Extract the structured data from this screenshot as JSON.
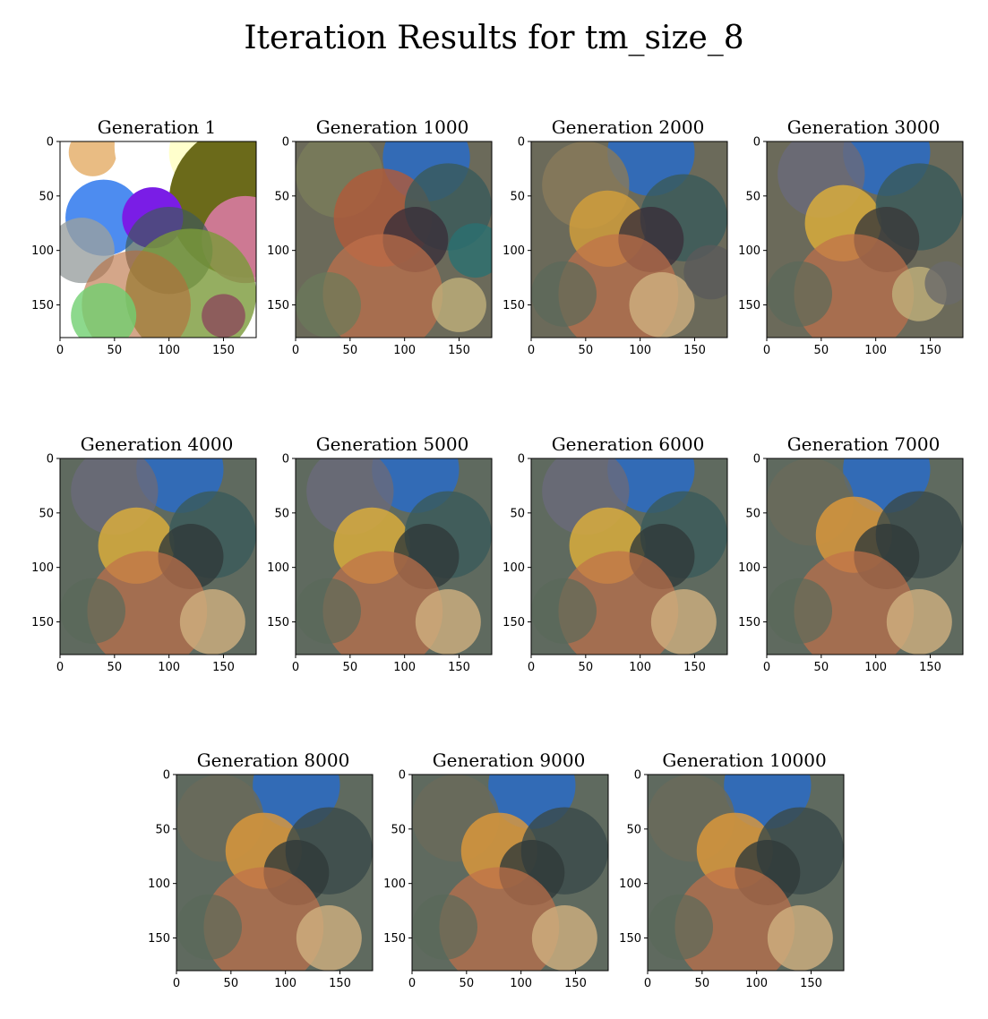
{
  "title": "Iteration Results for tm_size_8",
  "chart_data": [
    {
      "type": "image",
      "title": "Generation 1",
      "xticks": [
        "0",
        "50",
        "100",
        "150"
      ],
      "yticks": [
        "0",
        "50",
        "100",
        "150"
      ],
      "xlim": [
        0,
        180
      ],
      "ylim": [
        180,
        0
      ],
      "palette": "early",
      "circles": [
        [
          30,
          10,
          22,
          "#e8b87c",
          0.95
        ],
        [
          95,
          5,
          45,
          "#ffffff",
          1
        ],
        [
          140,
          10,
          40,
          "#ffffcc",
          1
        ],
        [
          170,
          55,
          70,
          "#6b6a1a",
          1
        ],
        [
          40,
          70,
          35,
          "#4d8cf0",
          1
        ],
        [
          85,
          70,
          28,
          "#7a1de6",
          1
        ],
        [
          170,
          90,
          40,
          "#d87ba1",
          0.9
        ],
        [
          100,
          100,
          40,
          "#3f5a5a",
          0.7
        ],
        [
          20,
          100,
          30,
          "#9aa0a0",
          0.8
        ],
        [
          120,
          140,
          60,
          "#7a9a3a",
          0.8
        ],
        [
          70,
          150,
          50,
          "#b86a3a",
          0.6
        ],
        [
          40,
          160,
          30,
          "#70d070",
          0.8
        ],
        [
          150,
          160,
          20,
          "#8a3a5a",
          0.7
        ]
      ]
    },
    {
      "type": "image",
      "title": "Generation 1000",
      "xticks": [
        "0",
        "50",
        "100",
        "150"
      ],
      "yticks": [
        "0",
        "50",
        "100",
        "150"
      ],
      "xlim": [
        0,
        180
      ],
      "ylim": [
        180,
        0
      ],
      "palette": "mid",
      "circles": [
        [
          120,
          15,
          40,
          "#2d6cc0",
          0.9
        ],
        [
          40,
          30,
          40,
          "#7a7d5a",
          0.8
        ],
        [
          80,
          70,
          45,
          "#b05a3a",
          0.8
        ],
        [
          140,
          60,
          40,
          "#3a5a5a",
          0.8
        ],
        [
          110,
          90,
          30,
          "#3a2f3a",
          0.8
        ],
        [
          80,
          140,
          55,
          "#c0704a",
          0.7
        ],
        [
          30,
          150,
          30,
          "#6a7a5a",
          0.7
        ],
        [
          150,
          150,
          25,
          "#c0b07a",
          0.8
        ],
        [
          165,
          100,
          25,
          "#2a7070",
          0.8
        ]
      ]
    },
    {
      "type": "image",
      "title": "Generation 2000",
      "xticks": [
        "0",
        "50",
        "100",
        "150"
      ],
      "yticks": [
        "0",
        "50",
        "100",
        "150"
      ],
      "xlim": [
        0,
        180
      ],
      "ylim": [
        180,
        0
      ],
      "palette": "mid",
      "circles": [
        [
          110,
          10,
          40,
          "#2d6cc0",
          0.9
        ],
        [
          50,
          40,
          40,
          "#8a7a5a",
          0.8
        ],
        [
          70,
          80,
          35,
          "#d6a03a",
          0.8
        ],
        [
          140,
          70,
          40,
          "#3a5a5a",
          0.8
        ],
        [
          110,
          90,
          30,
          "#3a2f3a",
          0.8
        ],
        [
          80,
          140,
          55,
          "#c0704a",
          0.7
        ],
        [
          30,
          140,
          30,
          "#5a6a5a",
          0.7
        ],
        [
          120,
          150,
          30,
          "#d0b080",
          0.8
        ],
        [
          165,
          120,
          25,
          "#5a5a5a",
          0.8
        ]
      ]
    },
    {
      "type": "image",
      "title": "Generation 3000",
      "xticks": [
        "0",
        "50",
        "100",
        "150"
      ],
      "yticks": [
        "0",
        "50",
        "100",
        "150"
      ],
      "xlim": [
        0,
        180
      ],
      "ylim": [
        180,
        0
      ],
      "palette": "mid",
      "circles": [
        [
          110,
          10,
          40,
          "#2d6cc0",
          0.9
        ],
        [
          50,
          30,
          40,
          "#6a6a7a",
          0.8
        ],
        [
          70,
          75,
          35,
          "#e0b03a",
          0.8
        ],
        [
          140,
          60,
          40,
          "#3a5a5a",
          0.8
        ],
        [
          110,
          90,
          30,
          "#3a3a3a",
          0.8
        ],
        [
          80,
          140,
          55,
          "#c0704a",
          0.7
        ],
        [
          30,
          140,
          30,
          "#5a6a5a",
          0.7
        ],
        [
          140,
          140,
          25,
          "#c0b07a",
          0.8
        ],
        [
          165,
          130,
          20,
          "#6a6a6a",
          0.8
        ]
      ]
    },
    {
      "type": "image",
      "title": "Generation 4000",
      "xticks": [
        "0",
        "50",
        "100",
        "150"
      ],
      "yticks": [
        "0",
        "50",
        "100",
        "150"
      ],
      "xlim": [
        0,
        180
      ],
      "ylim": [
        180,
        0
      ],
      "palette": "late",
      "circles": [
        [
          110,
          10,
          40,
          "#2d6cc0",
          0.9
        ],
        [
          50,
          30,
          40,
          "#6a6a7a",
          0.8
        ],
        [
          70,
          80,
          35,
          "#e0b03a",
          0.8
        ],
        [
          140,
          70,
          40,
          "#3a5a5a",
          0.8
        ],
        [
          120,
          90,
          30,
          "#2f3a3a",
          0.8
        ],
        [
          80,
          140,
          55,
          "#c0704a",
          0.7
        ],
        [
          30,
          140,
          30,
          "#5a6a5a",
          0.7
        ],
        [
          140,
          150,
          30,
          "#d0b080",
          0.8
        ]
      ]
    },
    {
      "type": "image",
      "title": "Generation 5000",
      "xticks": [
        "0",
        "50",
        "100",
        "150"
      ],
      "yticks": [
        "0",
        "50",
        "100",
        "150"
      ],
      "xlim": [
        0,
        180
      ],
      "ylim": [
        180,
        0
      ],
      "palette": "late",
      "circles": [
        [
          110,
          10,
          40,
          "#2d6cc0",
          0.9
        ],
        [
          50,
          30,
          40,
          "#6a6a7a",
          0.8
        ],
        [
          70,
          80,
          35,
          "#e0b03a",
          0.8
        ],
        [
          140,
          70,
          40,
          "#3a5a5a",
          0.8
        ],
        [
          120,
          90,
          30,
          "#2f3a3a",
          0.8
        ],
        [
          80,
          140,
          55,
          "#c0704a",
          0.7
        ],
        [
          30,
          140,
          30,
          "#5a6a5a",
          0.7
        ],
        [
          140,
          150,
          30,
          "#d0b080",
          0.8
        ]
      ]
    },
    {
      "type": "image",
      "title": "Generation 6000",
      "xticks": [
        "0",
        "50",
        "100",
        "150"
      ],
      "yticks": [
        "0",
        "50",
        "100",
        "150"
      ],
      "xlim": [
        0,
        180
      ],
      "ylim": [
        180,
        0
      ],
      "palette": "late",
      "circles": [
        [
          110,
          10,
          40,
          "#2d6cc0",
          0.9
        ],
        [
          50,
          30,
          40,
          "#6a6a7a",
          0.8
        ],
        [
          70,
          80,
          35,
          "#e0b03a",
          0.8
        ],
        [
          140,
          70,
          40,
          "#3a5a5a",
          0.8
        ],
        [
          120,
          90,
          30,
          "#2f3a3a",
          0.8
        ],
        [
          80,
          140,
          55,
          "#c0704a",
          0.7
        ],
        [
          30,
          140,
          30,
          "#5a6a5a",
          0.7
        ],
        [
          140,
          150,
          30,
          "#d0b080",
          0.8
        ]
      ]
    },
    {
      "type": "image",
      "title": "Generation 7000",
      "xticks": [
        "0",
        "50",
        "100",
        "150"
      ],
      "yticks": [
        "0",
        "50",
        "100",
        "150"
      ],
      "xlim": [
        0,
        180
      ],
      "ylim": [
        180,
        0
      ],
      "palette": "late",
      "circles": [
        [
          110,
          10,
          40,
          "#2d6cc0",
          0.9
        ],
        [
          40,
          40,
          40,
          "#6a6a5a",
          0.8
        ],
        [
          80,
          70,
          35,
          "#e09a3a",
          0.8
        ],
        [
          140,
          70,
          40,
          "#3a4a4a",
          0.8
        ],
        [
          110,
          90,
          30,
          "#2f3a3a",
          0.8
        ],
        [
          80,
          140,
          55,
          "#c0704a",
          0.7
        ],
        [
          30,
          140,
          30,
          "#5a6a5a",
          0.7
        ],
        [
          140,
          150,
          30,
          "#d0b080",
          0.8
        ]
      ]
    },
    {
      "type": "image",
      "title": "Generation 8000",
      "xticks": [
        "0",
        "50",
        "100",
        "150"
      ],
      "yticks": [
        "0",
        "50",
        "100",
        "150"
      ],
      "xlim": [
        0,
        180
      ],
      "ylim": [
        180,
        0
      ],
      "palette": "late",
      "circles": [
        [
          110,
          10,
          40,
          "#2d6cc0",
          0.9
        ],
        [
          40,
          40,
          40,
          "#6a6a5a",
          0.8
        ],
        [
          80,
          70,
          35,
          "#e09a3a",
          0.8
        ],
        [
          140,
          70,
          40,
          "#3a4a4a",
          0.8
        ],
        [
          110,
          90,
          30,
          "#2f3a3a",
          0.8
        ],
        [
          80,
          140,
          55,
          "#c0704a",
          0.7
        ],
        [
          30,
          140,
          30,
          "#5a6a5a",
          0.7
        ],
        [
          140,
          150,
          30,
          "#d0b080",
          0.8
        ]
      ]
    },
    {
      "type": "image",
      "title": "Generation 9000",
      "xticks": [
        "0",
        "50",
        "100",
        "150"
      ],
      "yticks": [
        "0",
        "50",
        "100",
        "150"
      ],
      "xlim": [
        0,
        180
      ],
      "ylim": [
        180,
        0
      ],
      "palette": "late",
      "circles": [
        [
          110,
          10,
          40,
          "#2d6cc0",
          0.9
        ],
        [
          40,
          40,
          40,
          "#6a6a5a",
          0.8
        ],
        [
          80,
          70,
          35,
          "#e09a3a",
          0.8
        ],
        [
          140,
          70,
          40,
          "#3a4a4a",
          0.8
        ],
        [
          110,
          90,
          30,
          "#2f3a3a",
          0.8
        ],
        [
          80,
          140,
          55,
          "#c0704a",
          0.7
        ],
        [
          30,
          140,
          30,
          "#5a6a5a",
          0.7
        ],
        [
          140,
          150,
          30,
          "#d0b080",
          0.8
        ]
      ]
    },
    {
      "type": "image",
      "title": "Generation 10000",
      "xticks": [
        "0",
        "50",
        "100",
        "150"
      ],
      "yticks": [
        "0",
        "50",
        "100",
        "150"
      ],
      "xlim": [
        0,
        180
      ],
      "ylim": [
        180,
        0
      ],
      "palette": "late",
      "circles": [
        [
          110,
          10,
          40,
          "#2d6cc0",
          0.9
        ],
        [
          40,
          40,
          40,
          "#6a6a5a",
          0.8
        ],
        [
          80,
          70,
          35,
          "#e09a3a",
          0.8
        ],
        [
          140,
          70,
          40,
          "#3a4a4a",
          0.8
        ],
        [
          110,
          90,
          30,
          "#2f3a3a",
          0.8
        ],
        [
          80,
          140,
          55,
          "#c0704a",
          0.7
        ],
        [
          30,
          140,
          30,
          "#5a6a5a",
          0.7
        ],
        [
          140,
          150,
          30,
          "#d0b080",
          0.8
        ]
      ]
    }
  ]
}
